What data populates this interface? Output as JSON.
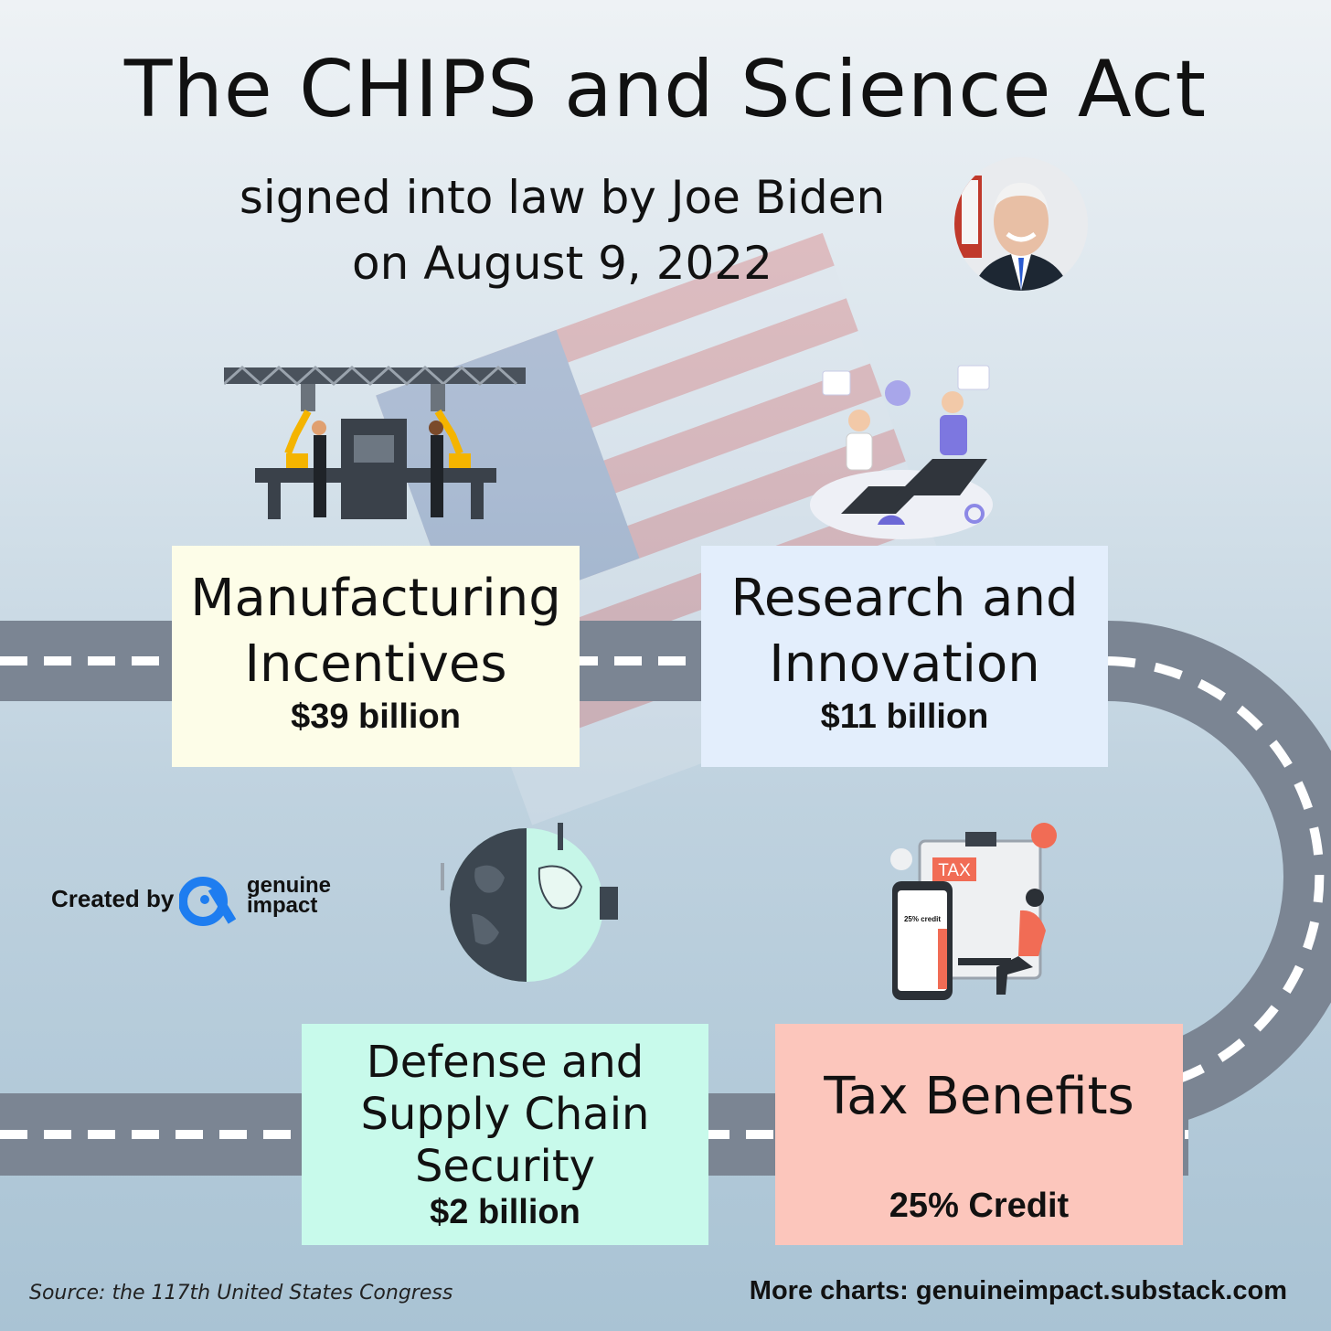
{
  "title": "The CHIPS and Science Act",
  "subtitle": {
    "line1": "signed into law by Joe Biden",
    "line2": "on August 9, 2022"
  },
  "boxes": [
    {
      "title_line1": "Manufacturing",
      "title_line2": "Incentives",
      "value": "$39 billion",
      "color": "#fdfde8"
    },
    {
      "title_line1": "Research and",
      "title_line2": "Innovation",
      "value": "$11 billion",
      "color": "#e3eefc"
    },
    {
      "title_line1": "Defense and",
      "title_line2": "Supply Chain",
      "title_line3": "Security",
      "value": "$2 billion",
      "color": "#c8faeb"
    },
    {
      "title_line1": "Tax Benefits",
      "value": "25% Credit",
      "color": "#fcc6bc"
    }
  ],
  "illustrations": {
    "tax_sign": "TAX",
    "phone_caption": "25% credit"
  },
  "credit": {
    "label": "Created by",
    "brand_line1": "genuine",
    "brand_line2": "impact",
    "brand_color": "#1e7df0"
  },
  "footer": {
    "source": "Source: the 117th United States Congress",
    "more": "More charts: genuineimpact.substack.com"
  },
  "colors": {
    "road": "#7b8593",
    "road_dash": "#ffffff"
  },
  "icons": [
    "factory-robot-arms-icon",
    "research-laptops-icon",
    "globe-icon",
    "tax-calculator-icon",
    "genuine-impact-logo-icon"
  ]
}
